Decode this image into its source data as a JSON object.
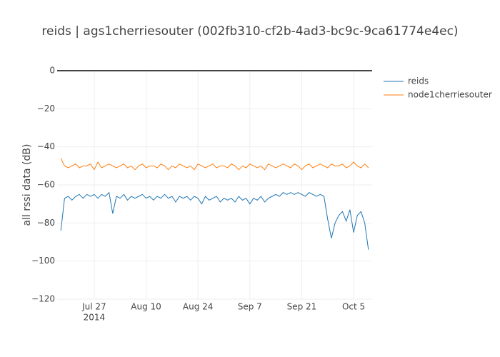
{
  "chart_data": {
    "type": "line",
    "title": "reids | ags1cherriesouter (002fb310-cf2b-4ad3-bc9c-9ca61774e4ec)",
    "y_label": "all rssi data (dB)",
    "x": [
      "2014-07-18",
      "2014-07-19",
      "2014-07-20",
      "2014-07-21",
      "2014-07-22",
      "2014-07-23",
      "2014-07-24",
      "2014-07-25",
      "2014-07-26",
      "2014-07-27",
      "2014-07-28",
      "2014-07-29",
      "2014-07-30",
      "2014-07-31",
      "2014-08-01",
      "2014-08-02",
      "2014-08-03",
      "2014-08-04",
      "2014-08-05",
      "2014-08-06",
      "2014-08-07",
      "2014-08-08",
      "2014-08-09",
      "2014-08-10",
      "2014-08-11",
      "2014-08-12",
      "2014-08-13",
      "2014-08-14",
      "2014-08-15",
      "2014-08-16",
      "2014-08-17",
      "2014-08-18",
      "2014-08-19",
      "2014-08-20",
      "2014-08-21",
      "2014-08-22",
      "2014-08-23",
      "2014-08-24",
      "2014-08-25",
      "2014-08-26",
      "2014-08-27",
      "2014-08-28",
      "2014-08-29",
      "2014-08-30",
      "2014-08-31",
      "2014-09-01",
      "2014-09-02",
      "2014-09-03",
      "2014-09-04",
      "2014-09-05",
      "2014-09-06",
      "2014-09-07",
      "2014-09-08",
      "2014-09-09",
      "2014-09-10",
      "2014-09-11",
      "2014-09-12",
      "2014-09-13",
      "2014-09-14",
      "2014-09-15",
      "2014-09-16",
      "2014-09-17",
      "2014-09-18",
      "2014-09-19",
      "2014-09-20",
      "2014-09-21",
      "2014-09-22",
      "2014-09-23",
      "2014-09-24",
      "2014-09-25",
      "2014-09-26",
      "2014-09-27",
      "2014-09-28",
      "2014-09-29",
      "2014-09-30",
      "2014-10-01",
      "2014-10-02",
      "2014-10-03",
      "2014-10-04",
      "2014-10-05",
      "2014-10-06",
      "2014-10-07",
      "2014-10-08",
      "2014-10-09"
    ],
    "series": [
      {
        "name": "reids",
        "color": "#1f77b4",
        "values": [
          -84,
          -67,
          -66,
          -68,
          -66,
          -65,
          -67,
          -65,
          -66,
          -65,
          -67,
          -65,
          -66,
          -64,
          -75,
          -66,
          -67,
          -65,
          -68,
          -66,
          -67,
          -66,
          -65,
          -67,
          -66,
          -68,
          -66,
          -67,
          -65,
          -67,
          -66,
          -69,
          -66,
          -67,
          -66,
          -68,
          -66,
          -67,
          -70,
          -66,
          -68,
          -67,
          -66,
          -69,
          -67,
          -68,
          -67,
          -69,
          -66,
          -68,
          -67,
          -70,
          -67,
          -68,
          -66,
          -69,
          -67,
          -66,
          -65,
          -66,
          -64,
          -65,
          -64,
          -65,
          -64,
          -65,
          -66,
          -64,
          -65,
          -66,
          -65,
          -66,
          -78,
          -88,
          -80,
          -76,
          -74,
          -79,
          -73,
          -85,
          -76,
          -74,
          -80,
          -94
        ]
      },
      {
        "name": "node1cherriesouter",
        "color": "#ff7f0e",
        "values": [
          -46,
          -50,
          -51,
          -50,
          -49,
          -51,
          -50,
          -50,
          -49,
          -52,
          -48,
          -51,
          -50,
          -49,
          -50,
          -51,
          -50,
          -49,
          -51,
          -50,
          -52,
          -50,
          -49,
          -51,
          -50,
          -50,
          -51,
          -49,
          -50,
          -52,
          -50,
          -51,
          -49,
          -50,
          -51,
          -50,
          -52,
          -49,
          -50,
          -51,
          -50,
          -49,
          -51,
          -50,
          -50,
          -51,
          -49,
          -50,
          -52,
          -50,
          -51,
          -49,
          -50,
          -51,
          -50,
          -52,
          -49,
          -50,
          -51,
          -50,
          -49,
          -50,
          -51,
          -49,
          -50,
          -52,
          -50,
          -49,
          -51,
          -50,
          -49,
          -50,
          -51,
          -49,
          -50,
          -50,
          -49,
          -51,
          -50,
          -48,
          -50,
          -51,
          -49,
          -51
        ]
      }
    ],
    "xlim": [
      "2014-07-17",
      "2014-10-10"
    ],
    "xticks": [
      {
        "value": "2014-07-27",
        "label": "Jul 27"
      },
      {
        "value": "2014-08-10",
        "label": "Aug 10"
      },
      {
        "value": "2014-08-24",
        "label": "Aug 24"
      },
      {
        "value": "2014-09-07",
        "label": "Sep 7"
      },
      {
        "value": "2014-09-21",
        "label": "Sep 21"
      },
      {
        "value": "2014-10-05",
        "label": "Oct 5"
      }
    ],
    "xaxis_year": "2014",
    "ylim": [
      -120,
      0
    ],
    "yticks": [
      0,
      {
        "value": -20,
        "label": "−20"
      },
      {
        "value": -40,
        "label": "−40"
      },
      {
        "value": -60,
        "label": "−60"
      },
      {
        "value": -80,
        "label": "−80"
      },
      {
        "value": -100,
        "label": "−100"
      },
      {
        "value": -120,
        "label": "−120"
      }
    ],
    "grid": true,
    "legend": "top-right"
  }
}
